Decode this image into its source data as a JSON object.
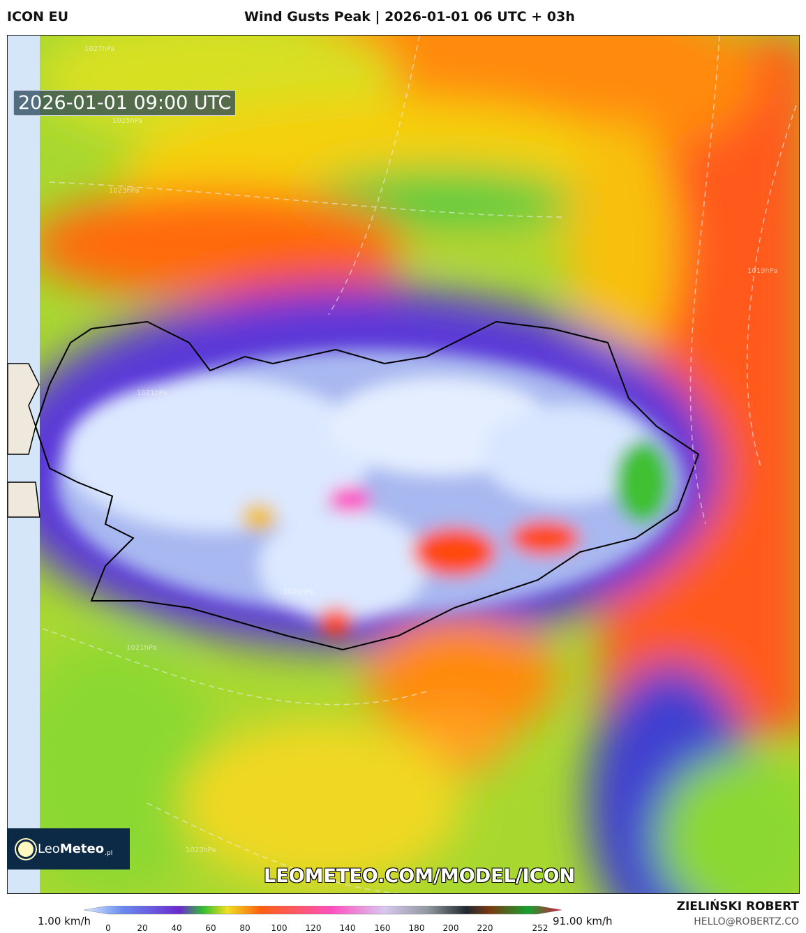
{
  "header": {
    "model": "ICON EU",
    "title": "Wind Gusts Peak | 2026-01-01 06 UTC + 03h"
  },
  "map": {
    "valid_time": "2026-01-01 09:00 UTC",
    "url": "LEOMETEO.COM/MODEL/ICON",
    "isobar_labels": [
      "1027hPa",
      "1025hPa",
      "1023hPa",
      "1021hPa",
      "1021hPa",
      "1021hPa",
      "1019hPa",
      "1023hPa"
    ]
  },
  "logo": {
    "brand_light": "Leo",
    "brand_bold": "Meteo",
    "suffix": ".pl"
  },
  "colorbar": {
    "min_label": "1.00 km/h",
    "max_label": "91.00 km/h",
    "ticks": [
      "0",
      "20",
      "40",
      "60",
      "80",
      "100",
      "120",
      "140",
      "160",
      "180",
      "200",
      "220",
      "252"
    ],
    "colors": [
      "#dcecff",
      "#6a8cf0",
      "#6a2ad0",
      "#30c030",
      "#f0e020",
      "#ff6010",
      "#ff50c0",
      "#d8c8f0",
      "#9098a0",
      "#202830",
      "#7a3a10",
      "#18a030",
      "#e0103a"
    ]
  },
  "credit": {
    "author": "ZIELIŃSKI ROBERT",
    "email": "HELLO@ROBERTZ.CO"
  }
}
